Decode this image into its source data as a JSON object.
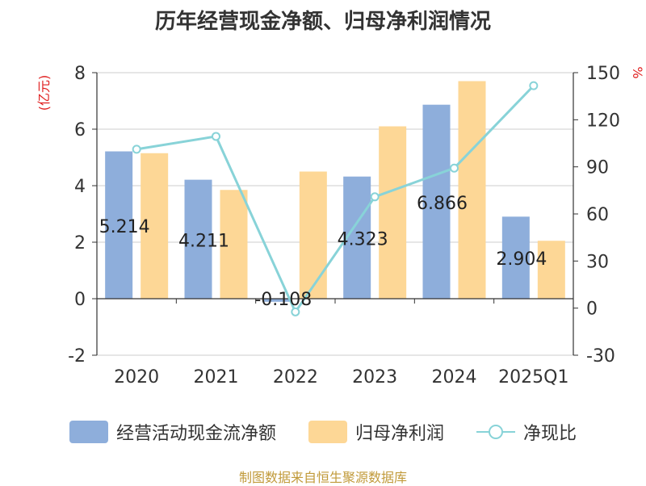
{
  "chart_data": {
    "title": "历年经营现金净额、归母净利润情况",
    "type": "bar",
    "categories": [
      "2020",
      "2021",
      "2022",
      "2023",
      "2024",
      "2025Q1"
    ],
    "series": [
      {
        "name": "经营活动现金流净额",
        "type": "bar",
        "axis": "left",
        "color": "#8eaedb",
        "values": [
          5.214,
          4.211,
          -0.108,
          4.323,
          6.866,
          2.904
        ],
        "labels": [
          "5.214",
          "4.211",
          "-0.108",
          "4.323",
          "6.866",
          "2.904"
        ]
      },
      {
        "name": "归母净利润",
        "type": "bar",
        "axis": "left",
        "color": "#fdd796",
        "values": [
          5.15,
          3.85,
          4.5,
          6.1,
          7.7,
          2.05
        ]
      },
      {
        "name": "净现比",
        "type": "line",
        "axis": "right",
        "color": "#88d3d8",
        "values": [
          101.2,
          109.4,
          -2.4,
          70.9,
          89.2,
          141.7
        ]
      }
    ],
    "y_left": {
      "label": "(亿元)",
      "ylim": [
        -2,
        8
      ],
      "ticks": [
        -2,
        0,
        2,
        4,
        6,
        8
      ]
    },
    "y_right": {
      "label": "%",
      "ylim": [
        -30,
        150
      ],
      "ticks": [
        -30,
        0,
        30,
        60,
        90,
        120,
        150
      ]
    },
    "legend_position": "bottom",
    "grid": true
  },
  "source": "制图数据来自恒生聚源数据库"
}
